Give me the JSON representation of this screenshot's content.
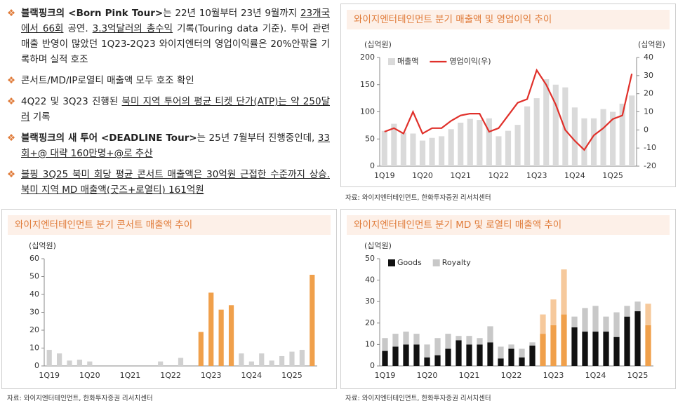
{
  "bullets": [
    [
      {
        "text": "블랙핑크의 <Born Pink Tour>",
        "bold": true
      },
      {
        "text": "는 22년 10월부터 23년 9월까지 "
      },
      {
        "text": "23개국에서 66회",
        "underline": true
      },
      {
        "text": " 공연. "
      },
      {
        "text": "3.3억달러의 총수익",
        "underline": true
      },
      {
        "text": " 기록(Touring data 기준). 투어 관련 매출 반영이 많았던 1Q23-2Q23 와이지엔터의 영업이익률은 20%안팎을 기록하며 실적 호조"
      }
    ],
    [
      {
        "text": "콘서트/MD/IP로열티 매출액 모두 호조 확인"
      }
    ],
    [
      {
        "text": "4Q22 및 3Q23 진행된 "
      },
      {
        "text": "북미 지역 투어의 평균 티켓 단가(ATP)는 약 250달러",
        "underline": true
      },
      {
        "text": " 기록"
      }
    ],
    [
      {
        "text": "블랙핑크의 새 투어 <DEADLINE Tour>",
        "bold": true
      },
      {
        "text": "는 25년 7월부터 진행중인데, "
      },
      {
        "text": "33회+@ 대략 160만명+@로 추산",
        "underline": true
      }
    ],
    [
      {
        "text": "블핑 3Q25 북미 회당 평균 콘서트 매출액은 30억원 근접한 수준까지 상승. 북미 지역 MD 매출액(굿즈+로열티) 161억원",
        "underline": true
      }
    ]
  ],
  "chart_data": [
    {
      "type": "bar_line",
      "title": "와이지엔터테인먼트 분기 매출액 및 영업이익 추이",
      "y_label": "(십억원)",
      "y2_label": "(십억원)",
      "source": "자료: 와이지엔터테인먼트, 한화투자증권 리서치센터",
      "categories": [
        "1Q19",
        null,
        null,
        null,
        "1Q20",
        null,
        null,
        null,
        "1Q21",
        null,
        null,
        null,
        "1Q22",
        null,
        null,
        null,
        "1Q23",
        null,
        null,
        null,
        "1Q24",
        null,
        null,
        null,
        "1Q25",
        null,
        null
      ],
      "series": [
        {
          "name": "매출액",
          "color": "#dadada",
          "values": [
            65,
            78,
            62,
            60,
            47,
            52,
            55,
            68,
            80,
            87,
            85,
            88,
            55,
            65,
            76,
            110,
            125,
            160,
            150,
            145,
            108,
            88,
            88,
            105,
            100,
            115,
            130
          ]
        },
        {
          "name": "영업이익(우)",
          "color": "#e0302a",
          "axis": "y2",
          "values": [
            -1,
            1,
            -2,
            10,
            -2,
            1,
            1,
            5,
            8,
            9,
            9,
            -1,
            1,
            8,
            15,
            17,
            33,
            25,
            14,
            0,
            -6,
            -11,
            -3,
            1,
            6,
            8,
            31
          ]
        }
      ],
      "ylim": [
        0,
        200
      ],
      "yticks": [
        0,
        50,
        100,
        150,
        200
      ],
      "y2lim": [
        -20,
        40
      ],
      "y2ticks": [
        -20,
        -10,
        0,
        10,
        20,
        30,
        40
      ],
      "legend": "top-left"
    },
    {
      "type": "bar",
      "title": "와이지엔터테인먼트 분기 콘서트 매출액 추이",
      "y_label": "(십억원)",
      "source": "자료: 와이지엔터테인먼트, 한화투자증권 리서치센터",
      "categories": [
        "1Q19",
        null,
        null,
        null,
        "1Q20",
        null,
        null,
        null,
        "1Q21",
        null,
        null,
        null,
        "1Q22",
        null,
        null,
        null,
        "1Q23",
        null,
        null,
        null,
        "1Q24",
        null,
        null,
        null,
        "1Q25",
        null,
        null
      ],
      "series": [
        {
          "color": "#d0d0d0",
          "values": [
            9,
            7,
            3,
            3.5,
            2.5,
            0,
            0,
            0,
            0,
            0,
            0,
            2.5,
            0,
            4.5,
            0,
            19,
            41,
            31.5,
            34,
            7,
            2.5,
            7,
            3,
            5.5,
            8,
            9,
            51
          ],
          "colors": [
            "#d0d0d0",
            "#d0d0d0",
            "#d0d0d0",
            "#d0d0d0",
            "#d0d0d0",
            "#d0d0d0",
            "#d0d0d0",
            "#d0d0d0",
            "#d0d0d0",
            "#d0d0d0",
            "#d0d0d0",
            "#d0d0d0",
            "#d0d0d0",
            "#d0d0d0",
            "#d0d0d0",
            "#f0a04b",
            "#f0a04b",
            "#f0a04b",
            "#f0a04b",
            "#d0d0d0",
            "#d0d0d0",
            "#d0d0d0",
            "#d0d0d0",
            "#d0d0d0",
            "#d0d0d0",
            "#d0d0d0",
            "#f0a04b"
          ]
        }
      ],
      "ylim": [
        0,
        60
      ],
      "yticks": [
        0,
        10,
        20,
        30,
        40,
        50,
        60
      ]
    },
    {
      "type": "stacked_bar",
      "title": "와이지엔터테인먼트 분기 MD 및 로열티 매출액 추이",
      "y_label": "(십억원)",
      "source": "자료: 와이지엔터테인먼트, 한화투자증권 리서치센터",
      "categories": [
        "1Q19",
        null,
        null,
        null,
        "1Q20",
        null,
        null,
        null,
        "1Q21",
        null,
        null,
        null,
        "1Q22",
        null,
        null,
        null,
        "1Q23",
        null,
        null,
        null,
        "1Q24",
        null,
        null,
        null,
        "1Q25",
        null
      ],
      "series": [
        {
          "name": "Goods",
          "color": "#111111",
          "values": [
            7,
            9,
            10,
            10,
            4,
            5,
            8,
            12,
            10,
            10,
            11,
            3.5,
            8,
            4,
            9.5,
            15,
            19,
            24,
            18,
            16,
            16,
            16,
            13.5,
            23,
            25.5,
            19
          ],
          "colors": [
            "#111111",
            "#111111",
            "#111111",
            "#111111",
            "#111111",
            "#111111",
            "#111111",
            "#111111",
            "#111111",
            "#111111",
            "#111111",
            "#111111",
            "#111111",
            "#111111",
            "#111111",
            "#f0a04b",
            "#f0a04b",
            "#f0a04b",
            "#111111",
            "#111111",
            "#111111",
            "#111111",
            "#111111",
            "#111111",
            "#111111",
            "#f0a04b"
          ]
        },
        {
          "name": "Royalty",
          "color": "#c8c8c8",
          "values": [
            6,
            6,
            6,
            5,
            6,
            8,
            7,
            2,
            4,
            3,
            7.5,
            5.5,
            2,
            4,
            1.5,
            9,
            12,
            21,
            5,
            11,
            12,
            7,
            11.5,
            5,
            4.5,
            10
          ],
          "colors": [
            "#c8c8c8",
            "#c8c8c8",
            "#c8c8c8",
            "#c8c8c8",
            "#c8c8c8",
            "#c8c8c8",
            "#c8c8c8",
            "#c8c8c8",
            "#c8c8c8",
            "#c8c8c8",
            "#c8c8c8",
            "#c8c8c8",
            "#c8c8c8",
            "#c8c8c8",
            "#c8c8c8",
            "#f6c99c",
            "#f6c99c",
            "#f6c99c",
            "#c8c8c8",
            "#c8c8c8",
            "#c8c8c8",
            "#c8c8c8",
            "#c8c8c8",
            "#c8c8c8",
            "#c8c8c8",
            "#f6c99c"
          ]
        }
      ],
      "ylim": [
        0,
        50
      ],
      "yticks": [
        0,
        10,
        20,
        30,
        40,
        50
      ],
      "legend": "top-left"
    }
  ]
}
